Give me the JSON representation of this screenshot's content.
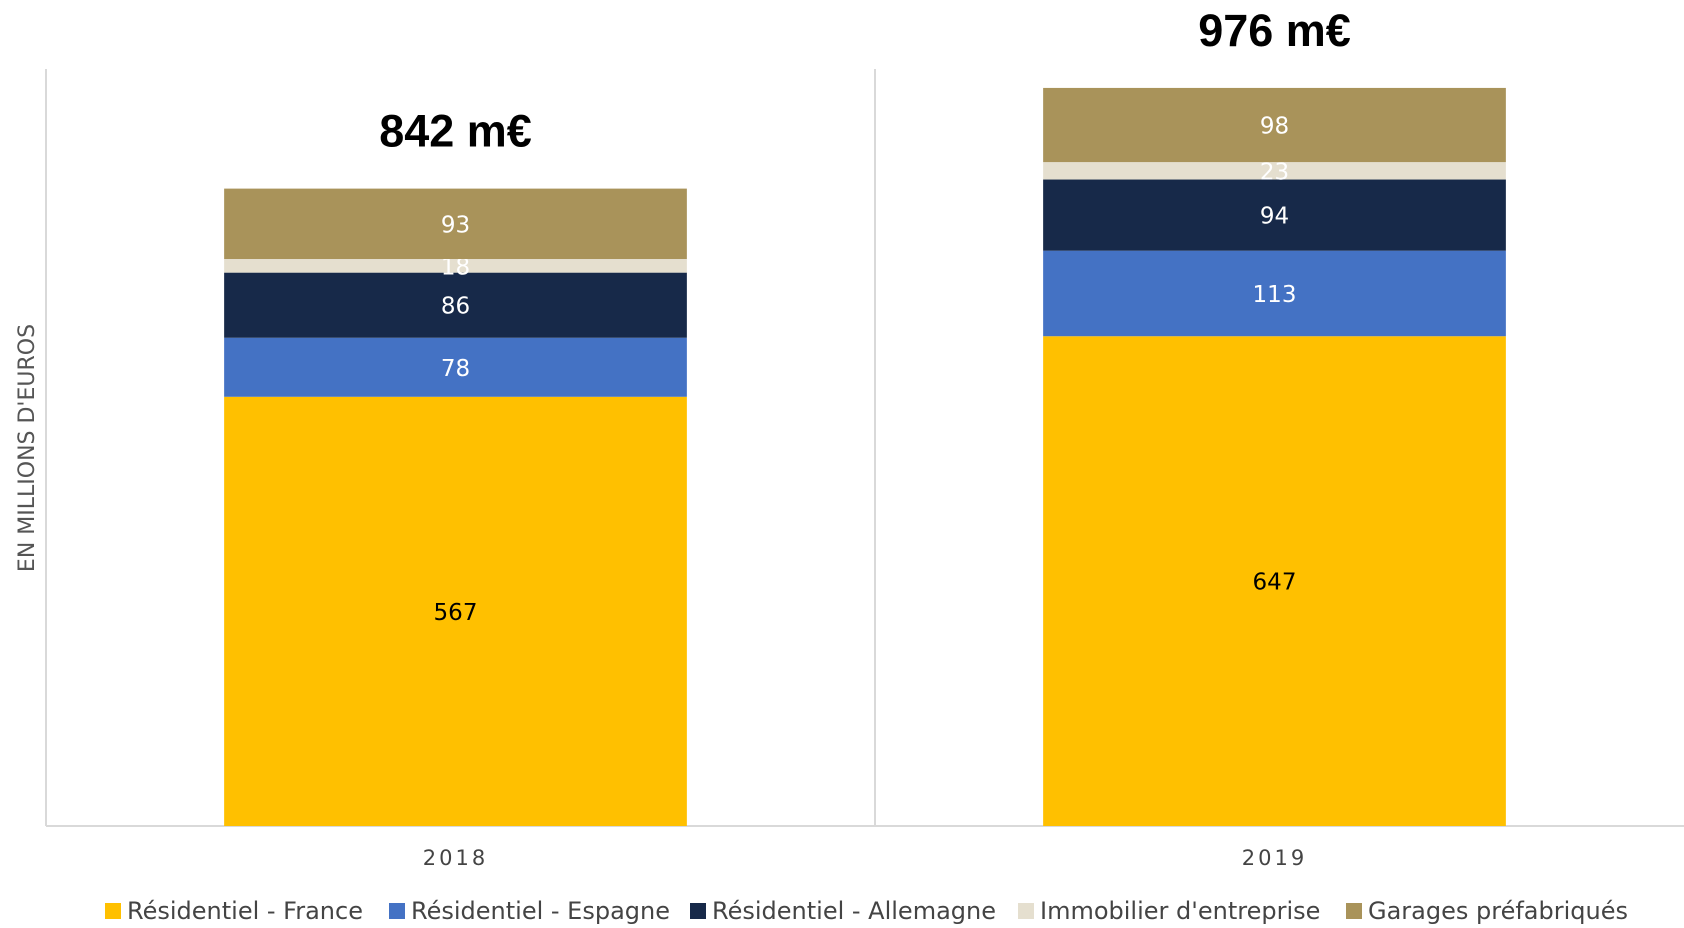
{
  "chart_data": {
    "type": "stacked_bar",
    "y_axis_label": "EN MILLIONS D'EUROS",
    "categories": [
      "2018",
      "2019"
    ],
    "series": [
      {
        "name": "Résidentiel - France",
        "color": "#ffc000",
        "values": [
          567,
          647
        ]
      },
      {
        "name": "Résidentiel - Espagne",
        "color": "#4472c4",
        "values": [
          78,
          113
        ]
      },
      {
        "name": "Résidentiel - Allemagne",
        "color": "#172949",
        "values": [
          86,
          94
        ]
      },
      {
        "name": "Immobilier d'entreprise",
        "color": "#e5dfcf",
        "values": [
          18,
          23
        ]
      },
      {
        "name": "Garages préfabriqués",
        "color": "#a9935a",
        "values": [
          93,
          98
        ]
      }
    ],
    "total_labels": [
      "842 m€",
      "976 m€"
    ],
    "ylim": [
      0,
      1000
    ],
    "legend": "bottom"
  }
}
